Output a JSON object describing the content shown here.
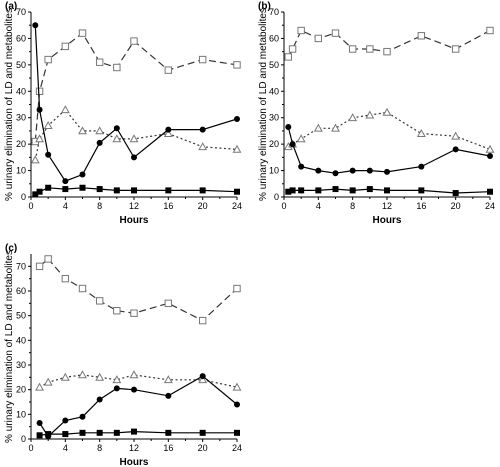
{
  "chart_data": [
    {
      "type": "line",
      "panel_label": "(a)",
      "xlabel": "Hours",
      "ylabel": "% urinary elimination of LD and metabolites",
      "xlim": [
        0,
        24
      ],
      "ylim": [
        0,
        70
      ],
      "xticks": [
        "0",
        "4",
        "8",
        "12",
        "16",
        "20",
        "24"
      ],
      "yticks": [
        "0",
        "10",
        "20",
        "30",
        "40",
        "50",
        "60",
        "70"
      ],
      "grid": false,
      "series": [
        {
          "marker": "open-square",
          "line": "dashed",
          "x": [
            0.5,
            1,
            2,
            4,
            6,
            8,
            10,
            12,
            16,
            20,
            24
          ],
          "y": [
            21,
            40,
            52,
            57,
            62,
            51,
            49,
            59,
            48,
            52,
            50
          ]
        },
        {
          "marker": "open-triangle",
          "line": "dotted",
          "x": [
            0.5,
            1,
            2,
            4,
            6,
            8,
            10,
            12,
            16,
            20,
            24
          ],
          "y": [
            14,
            22,
            27,
            33,
            25,
            25,
            22,
            22,
            24,
            19,
            18
          ]
        },
        {
          "marker": "filled-circle",
          "line": "solid",
          "x": [
            0.5,
            1,
            2,
            4,
            6,
            8,
            10,
            12,
            16,
            20,
            24
          ],
          "y": [
            65,
            33,
            16,
            6,
            8.5,
            20.5,
            26,
            15,
            25.5,
            25.5,
            29.5
          ]
        },
        {
          "marker": "filled-square",
          "line": "solid",
          "x": [
            0.5,
            1,
            2,
            4,
            6,
            8,
            10,
            12,
            16,
            20,
            24
          ],
          "y": [
            1,
            2,
            3.5,
            3,
            3.5,
            3,
            2.5,
            2.5,
            2.5,
            2.5,
            2
          ]
        }
      ]
    },
    {
      "type": "line",
      "panel_label": "(b)",
      "xlabel": "Hours",
      "ylabel": "% urinary elimination of LD and metabolites",
      "xlim": [
        0,
        24
      ],
      "ylim": [
        0,
        70
      ],
      "xticks": [
        "0",
        "4",
        "8",
        "12",
        "16",
        "20",
        "24"
      ],
      "yticks": [
        "0",
        "10",
        "20",
        "30",
        "40",
        "50",
        "60",
        "70"
      ],
      "grid": false,
      "series": [
        {
          "marker": "open-square",
          "line": "dashed",
          "x": [
            0.5,
            1,
            2,
            4,
            6,
            8,
            10,
            12,
            16,
            20,
            24
          ],
          "y": [
            53,
            56,
            63,
            60,
            62,
            56,
            56,
            55,
            61,
            56,
            63
          ]
        },
        {
          "marker": "open-triangle",
          "line": "dotted",
          "x": [
            0.5,
            1,
            2,
            4,
            6,
            8,
            10,
            12,
            16,
            20,
            24
          ],
          "y": [
            19,
            20,
            22,
            26,
            26,
            30,
            31,
            32,
            24,
            23,
            18
          ]
        },
        {
          "marker": "filled-circle",
          "line": "solid",
          "x": [
            0.5,
            1,
            2,
            4,
            6,
            8,
            10,
            12,
            16,
            20,
            24
          ],
          "y": [
            26.5,
            20,
            11.5,
            10,
            9,
            10,
            10,
            9.5,
            11.5,
            18,
            15.5
          ]
        },
        {
          "marker": "filled-square",
          "line": "solid",
          "x": [
            0.5,
            1,
            2,
            4,
            6,
            8,
            10,
            12,
            16,
            20,
            24
          ],
          "y": [
            2,
            2.5,
            2.5,
            2.5,
            3,
            2.5,
            3,
            2.5,
            2.5,
            1.5,
            2
          ]
        }
      ]
    },
    {
      "type": "line",
      "panel_label": "(c)",
      "xlabel": "Hours",
      "ylabel": "% urinary elimination of LD and metabolites",
      "xlim": [
        0,
        24
      ],
      "ylim": [
        0,
        75
      ],
      "xticks": [
        "0",
        "4",
        "8",
        "12",
        "16",
        "20",
        "24"
      ],
      "yticks": [
        "0",
        "10",
        "20",
        "30",
        "40",
        "50",
        "60",
        "70"
      ],
      "grid": false,
      "series": [
        {
          "marker": "open-square",
          "line": "dashed",
          "x": [
            1,
            2,
            4,
            6,
            8,
            10,
            12,
            16,
            20,
            24
          ],
          "y": [
            70,
            73,
            65,
            61,
            56,
            52,
            51,
            55,
            48,
            61
          ]
        },
        {
          "marker": "open-triangle",
          "line": "dotted",
          "x": [
            1,
            2,
            4,
            6,
            8,
            10,
            12,
            16,
            20,
            24
          ],
          "y": [
            21,
            23,
            25,
            26,
            25,
            24,
            26,
            24,
            24,
            21
          ]
        },
        {
          "marker": "filled-circle",
          "line": "solid",
          "x": [
            1,
            2,
            4,
            6,
            8,
            10,
            12,
            16,
            20,
            24
          ],
          "y": [
            6.5,
            1,
            7.5,
            9,
            16,
            20.5,
            20,
            17.5,
            25.5,
            14
          ]
        },
        {
          "marker": "filled-square",
          "line": "solid",
          "x": [
            1,
            2,
            4,
            6,
            8,
            10,
            12,
            16,
            20,
            24
          ],
          "y": [
            1.5,
            2,
            2,
            2.5,
            2.5,
            2.5,
            3,
            2.5,
            2.5,
            2.5
          ]
        }
      ]
    }
  ]
}
